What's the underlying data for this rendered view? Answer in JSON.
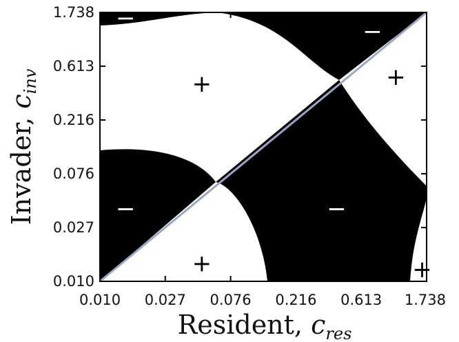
{
  "chart_data": {
    "type": "heatmap",
    "scale": "log",
    "x_ticks": [
      "0.010",
      "0.027",
      "0.076",
      "0.216",
      "0.613",
      "1.738"
    ],
    "y_ticks": [
      "0.010",
      "0.027",
      "0.076",
      "0.216",
      "0.613",
      "1.738"
    ],
    "xlim": [
      0.01,
      1.738
    ],
    "ylim": [
      0.01,
      1.738
    ],
    "xlabel": {
      "text": "Resident, ",
      "symbol": "c",
      "subscript": "res"
    },
    "ylabel": {
      "text": "Invader, ",
      "symbol": "c",
      "subscript": "inv"
    },
    "colors": {
      "negative": "#000000",
      "positive": "#ffffff",
      "diagonal": "#9aa6c4",
      "ink": "#111111"
    },
    "regions": [
      {
        "sign": "−",
        "x": 0.015,
        "y": 1.55
      },
      {
        "sign": "−",
        "x": 0.74,
        "y": 1.2
      },
      {
        "sign": "+",
        "x": 0.05,
        "y": 0.44
      },
      {
        "sign": "+",
        "x": 1.07,
        "y": 0.5
      },
      {
        "sign": "−",
        "x": 0.015,
        "y": 0.04
      },
      {
        "sign": "−",
        "x": 0.42,
        "y": 0.04
      },
      {
        "sign": "+",
        "x": 0.05,
        "y": 0.014
      },
      {
        "sign": "+",
        "x": 1.62,
        "y": 0.0125
      }
    ]
  }
}
